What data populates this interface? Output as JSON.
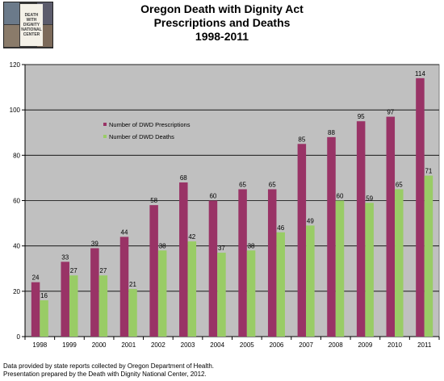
{
  "logo": {
    "text": "DEATH WITH\nDIGNITY\nNATIONAL\nCENTER"
  },
  "title_lines": [
    "Oregon Death with Dignity Act",
    "Prescriptions and Deaths",
    "1998-2011"
  ],
  "chart_data": {
    "type": "bar",
    "categories": [
      "1998",
      "1999",
      "2000",
      "2001",
      "2002",
      "2003",
      "2004",
      "2005",
      "2006",
      "2007",
      "2008",
      "2009",
      "2010",
      "2011"
    ],
    "series": [
      {
        "name": "Number of DWD Prescriptions",
        "values": [
          24,
          33,
          39,
          44,
          58,
          68,
          60,
          65,
          65,
          85,
          88,
          95,
          97,
          114
        ],
        "color": "#993366"
      },
      {
        "name": "Number of DWD Deaths",
        "values": [
          16,
          27,
          27,
          21,
          38,
          42,
          37,
          38,
          46,
          49,
          60,
          59,
          65,
          71
        ],
        "color": "#99cc66"
      }
    ],
    "ylim": [
      0,
      120
    ],
    "yticks": [
      0,
      20,
      40,
      60,
      80,
      100,
      120
    ],
    "grid": true,
    "legend_position": "left-upper-inside",
    "plot_background": "#c0c0c0"
  },
  "footnotes": [
    "Data provided by state reports collected by Oregon Department of Health.",
    "Presentation prepared by the Death with Dignity National Center, 2012."
  ]
}
